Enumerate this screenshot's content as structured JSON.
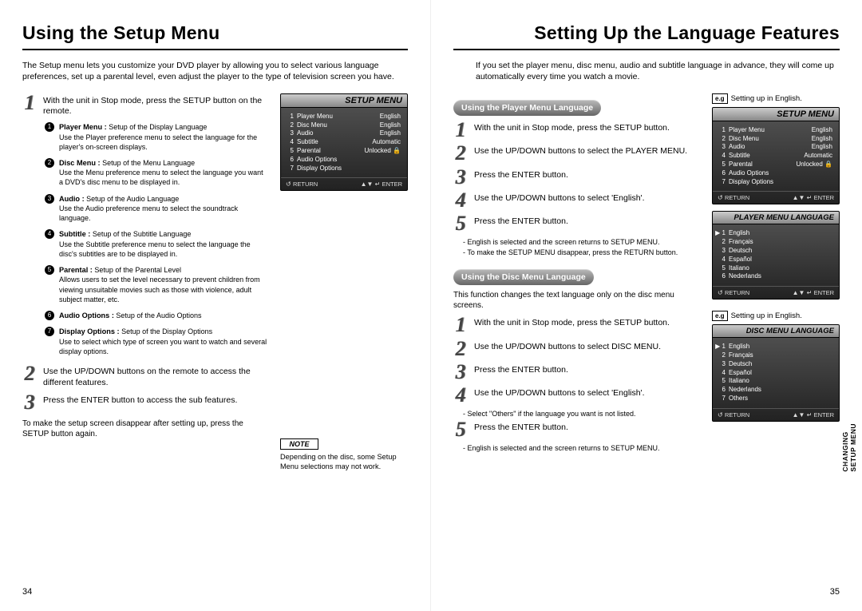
{
  "left": {
    "title": "Using the Setup Menu",
    "intro": "The Setup menu lets you customize your DVD player by allowing you to select various language preferences, set up a parental level, even adjust the player to the type of television screen you have.",
    "step1": "With the unit in Stop mode, press the SETUP button on the remote.",
    "items": [
      {
        "t": "Player Menu :",
        "s": "Setup of the Display Language",
        "d": "Use the Player preference menu to select the language for the player's on-screen displays."
      },
      {
        "t": "Disc Menu :",
        "s": "Setup of the Menu Language",
        "d": "Use the Menu preference menu to select the language you want a DVD's disc menu to be displayed in."
      },
      {
        "t": "Audio :",
        "s": "Setup of the Audio Language",
        "d": "Use the Audio preference menu to select the soundtrack language."
      },
      {
        "t": "Subtitle :",
        "s": "Setup of the Subtitle Language",
        "d": "Use the Subtitle preference menu to select the language the disc's subtitles are to be displayed in."
      },
      {
        "t": "Parental :",
        "s": "Setup of the Parental Level",
        "d": "Allows users to set the level necessary to prevent children from viewing unsuitable movies such as those with violence, adult subject matter, etc."
      },
      {
        "t": "Audio Options :",
        "s": "Setup of the Audio Options",
        "d": ""
      },
      {
        "t": "Display Options :",
        "s": "Setup of the Display Options",
        "d": "Use to select which type of screen you want to watch and several display options."
      }
    ],
    "step2": "Use the UP/DOWN buttons on the remote to access the different features.",
    "step3": "Press the ENTER button to access the sub features.",
    "afternote": "To make the setup screen disappear after setting up, press the SETUP button again.",
    "noteHead": "NOTE",
    "noteBody": "Depending on the disc, some Setup Menu selections may not work.",
    "pagenum": "34",
    "screenTitle": "SETUP MENU",
    "setupRows": [
      {
        "n": "1",
        "l": "Player Menu",
        "v": "English"
      },
      {
        "n": "2",
        "l": "Disc Menu",
        "v": "English"
      },
      {
        "n": "3",
        "l": "Audio",
        "v": "English"
      },
      {
        "n": "4",
        "l": "Subtitle",
        "v": "Automatic"
      },
      {
        "n": "5",
        "l": "Parental",
        "v": "Unlocked 🔒"
      },
      {
        "n": "6",
        "l": "Audio Options",
        "v": ""
      },
      {
        "n": "7",
        "l": "Display Options",
        "v": ""
      }
    ],
    "return": "RETURN",
    "enter": "ENTER"
  },
  "right": {
    "title": "Setting Up the Language Features",
    "intro": "If you set the player menu, disc menu, audio and subtitle language in advance, they will come up automatically every time you watch a movie.",
    "pillPlayer": "Using the Player Menu Language",
    "pillDisc": "Using the Disc Menu Language",
    "playerSteps": [
      "With the unit in Stop mode, press the SETUP button.",
      "Use the UP/DOWN buttons to select the PLAYER MENU.",
      "Press the ENTER button.",
      "Use the UP/DOWN buttons to select 'English'.",
      "Press the ENTER button."
    ],
    "playerNotes": [
      "- English is selected and the screen returns to SETUP MENU.",
      "- To make the SETUP MENU disappear, press the RETURN button."
    ],
    "discIntro": "This function changes the text language only on the disc menu screens.",
    "discSteps": [
      "With the unit in Stop mode, press the SETUP button.",
      "Use the UP/DOWN buttons to select DISC MENU.",
      "Press the ENTER button.",
      "Use the UP/DOWN buttons to select 'English'."
    ],
    "discNote1": "- Select \"Others\" if the language you want is not listed.",
    "discStep5": "Press the ENTER button.",
    "discNote2": "- English is selected and the screen returns to SETUP MENU.",
    "eg": "Setting up in English.",
    "egLabel": "e.g",
    "playerLangTitle": "PLAYER MENU LANGUAGE",
    "discLangTitle": "DISC MENU LANGUAGE",
    "playerLangs": [
      {
        "n": "1",
        "l": "English",
        "sel": true
      },
      {
        "n": "2",
        "l": "Français"
      },
      {
        "n": "3",
        "l": "Deutsch"
      },
      {
        "n": "4",
        "l": "Español"
      },
      {
        "n": "5",
        "l": "Italiano"
      },
      {
        "n": "6",
        "l": "Nederlands"
      }
    ],
    "discLangs": [
      {
        "n": "1",
        "l": "English",
        "sel": true
      },
      {
        "n": "2",
        "l": "Français"
      },
      {
        "n": "3",
        "l": "Deutsch"
      },
      {
        "n": "4",
        "l": "Español"
      },
      {
        "n": "5",
        "l": "Italiano"
      },
      {
        "n": "6",
        "l": "Nederlands"
      },
      {
        "n": "7",
        "l": "Others"
      }
    ],
    "sideTab1": "CHANGING",
    "sideTab2": "SETUP MENU",
    "pagenum": "35"
  }
}
